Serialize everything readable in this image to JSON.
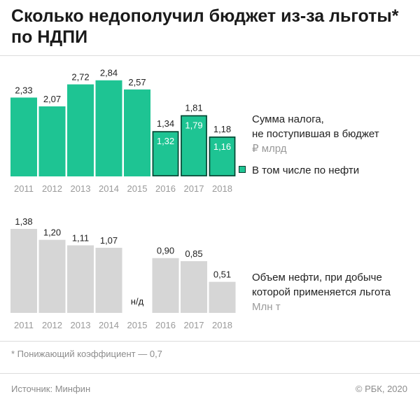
{
  "title": "Сколько недополучил бюджет из-за льготы* по НДПИ",
  "chart_data": [
    {
      "type": "bar",
      "categories": [
        "2011",
        "2012",
        "2013",
        "2014",
        "2015",
        "2016",
        "2017",
        "2018"
      ],
      "series": [
        {
          "name": "Сумма налога, не поступившая в бюджет",
          "values": [
            2.33,
            2.07,
            2.72,
            2.84,
            2.57,
            1.34,
            1.81,
            1.18
          ],
          "labels": [
            "2,33",
            "2,07",
            "2,72",
            "2,84",
            "2,57",
            "1,34",
            "1,81",
            "1,18"
          ],
          "color": "#1ec493"
        },
        {
          "name": "В том числе по нефти",
          "values": [
            null,
            null,
            null,
            null,
            null,
            1.32,
            1.79,
            1.16
          ],
          "labels": [
            "",
            "",
            "",
            "",
            "",
            "1,32",
            "1,79",
            "1,16"
          ],
          "color": "#1ec493"
        }
      ],
      "unit": "₽ млрд",
      "ylim": [
        0,
        3
      ]
    },
    {
      "type": "bar",
      "categories": [
        "2011",
        "2012",
        "2013",
        "2014",
        "2015",
        "2016",
        "2017",
        "2018"
      ],
      "series": [
        {
          "name": "Объем нефти, при добыче которой применяется льгота",
          "values": [
            1.38,
            1.2,
            1.11,
            1.07,
            null,
            0.9,
            0.85,
            0.51
          ],
          "labels": [
            "1,38",
            "1,20",
            "1,11",
            "1,07",
            "н/д",
            "0,90",
            "0,85",
            "0,51"
          ],
          "color": "#d6d6d6"
        }
      ],
      "unit": "Млн т",
      "ylim": [
        0,
        1.5
      ]
    }
  ],
  "legend": {
    "total_line1": "Сумма налога,",
    "total_line2": "не поступившая в бюджет",
    "total_unit": "₽ млрд",
    "oil": "В том числе по нефти",
    "volume_line1": "Объем нефти, при добыче",
    "volume_line2": "которой применяется льгота",
    "volume_unit": "Млн т"
  },
  "footnote": "* Понижающий коэффициент — 0,7",
  "source": "Источник: Минфин",
  "copyright": "© РБК, 2020"
}
